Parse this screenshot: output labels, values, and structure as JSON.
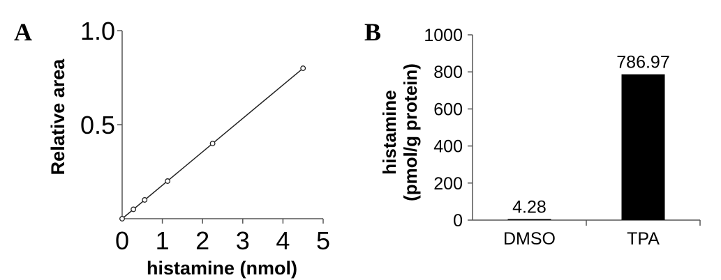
{
  "panels": {
    "a_letter": "A",
    "b_letter": "B"
  },
  "chart_data": [
    {
      "type": "scatter",
      "panel": "A",
      "title": "",
      "xlabel": "histamine (nmol)",
      "ylabel": "Relative area",
      "xlim": [
        0,
        5
      ],
      "ylim": [
        0,
        1.0
      ],
      "xticks": [
        "0",
        "1",
        "2",
        "3",
        "4",
        "5"
      ],
      "yticks": [
        "0.5",
        "1.0"
      ],
      "x": [
        0.0,
        0.28,
        0.56,
        1.13,
        2.25,
        4.5
      ],
      "y": [
        0.0,
        0.05,
        0.1,
        0.2,
        0.4,
        0.8
      ],
      "fit_line": true,
      "grid": false
    },
    {
      "type": "bar",
      "panel": "B",
      "title": "",
      "categories": [
        "DMSO",
        "TPA"
      ],
      "values": [
        4.28,
        786.97
      ],
      "data_labels": [
        "4.28",
        "786.97"
      ],
      "xlabel": "",
      "ylabel_line1": "histamine",
      "ylabel_line2": "(pmol/g protein)",
      "ylim": [
        0,
        1000
      ],
      "yticks": [
        "0",
        "200",
        "400",
        "600",
        "800",
        "1000"
      ],
      "bar_color": "#000000",
      "grid": false
    }
  ]
}
